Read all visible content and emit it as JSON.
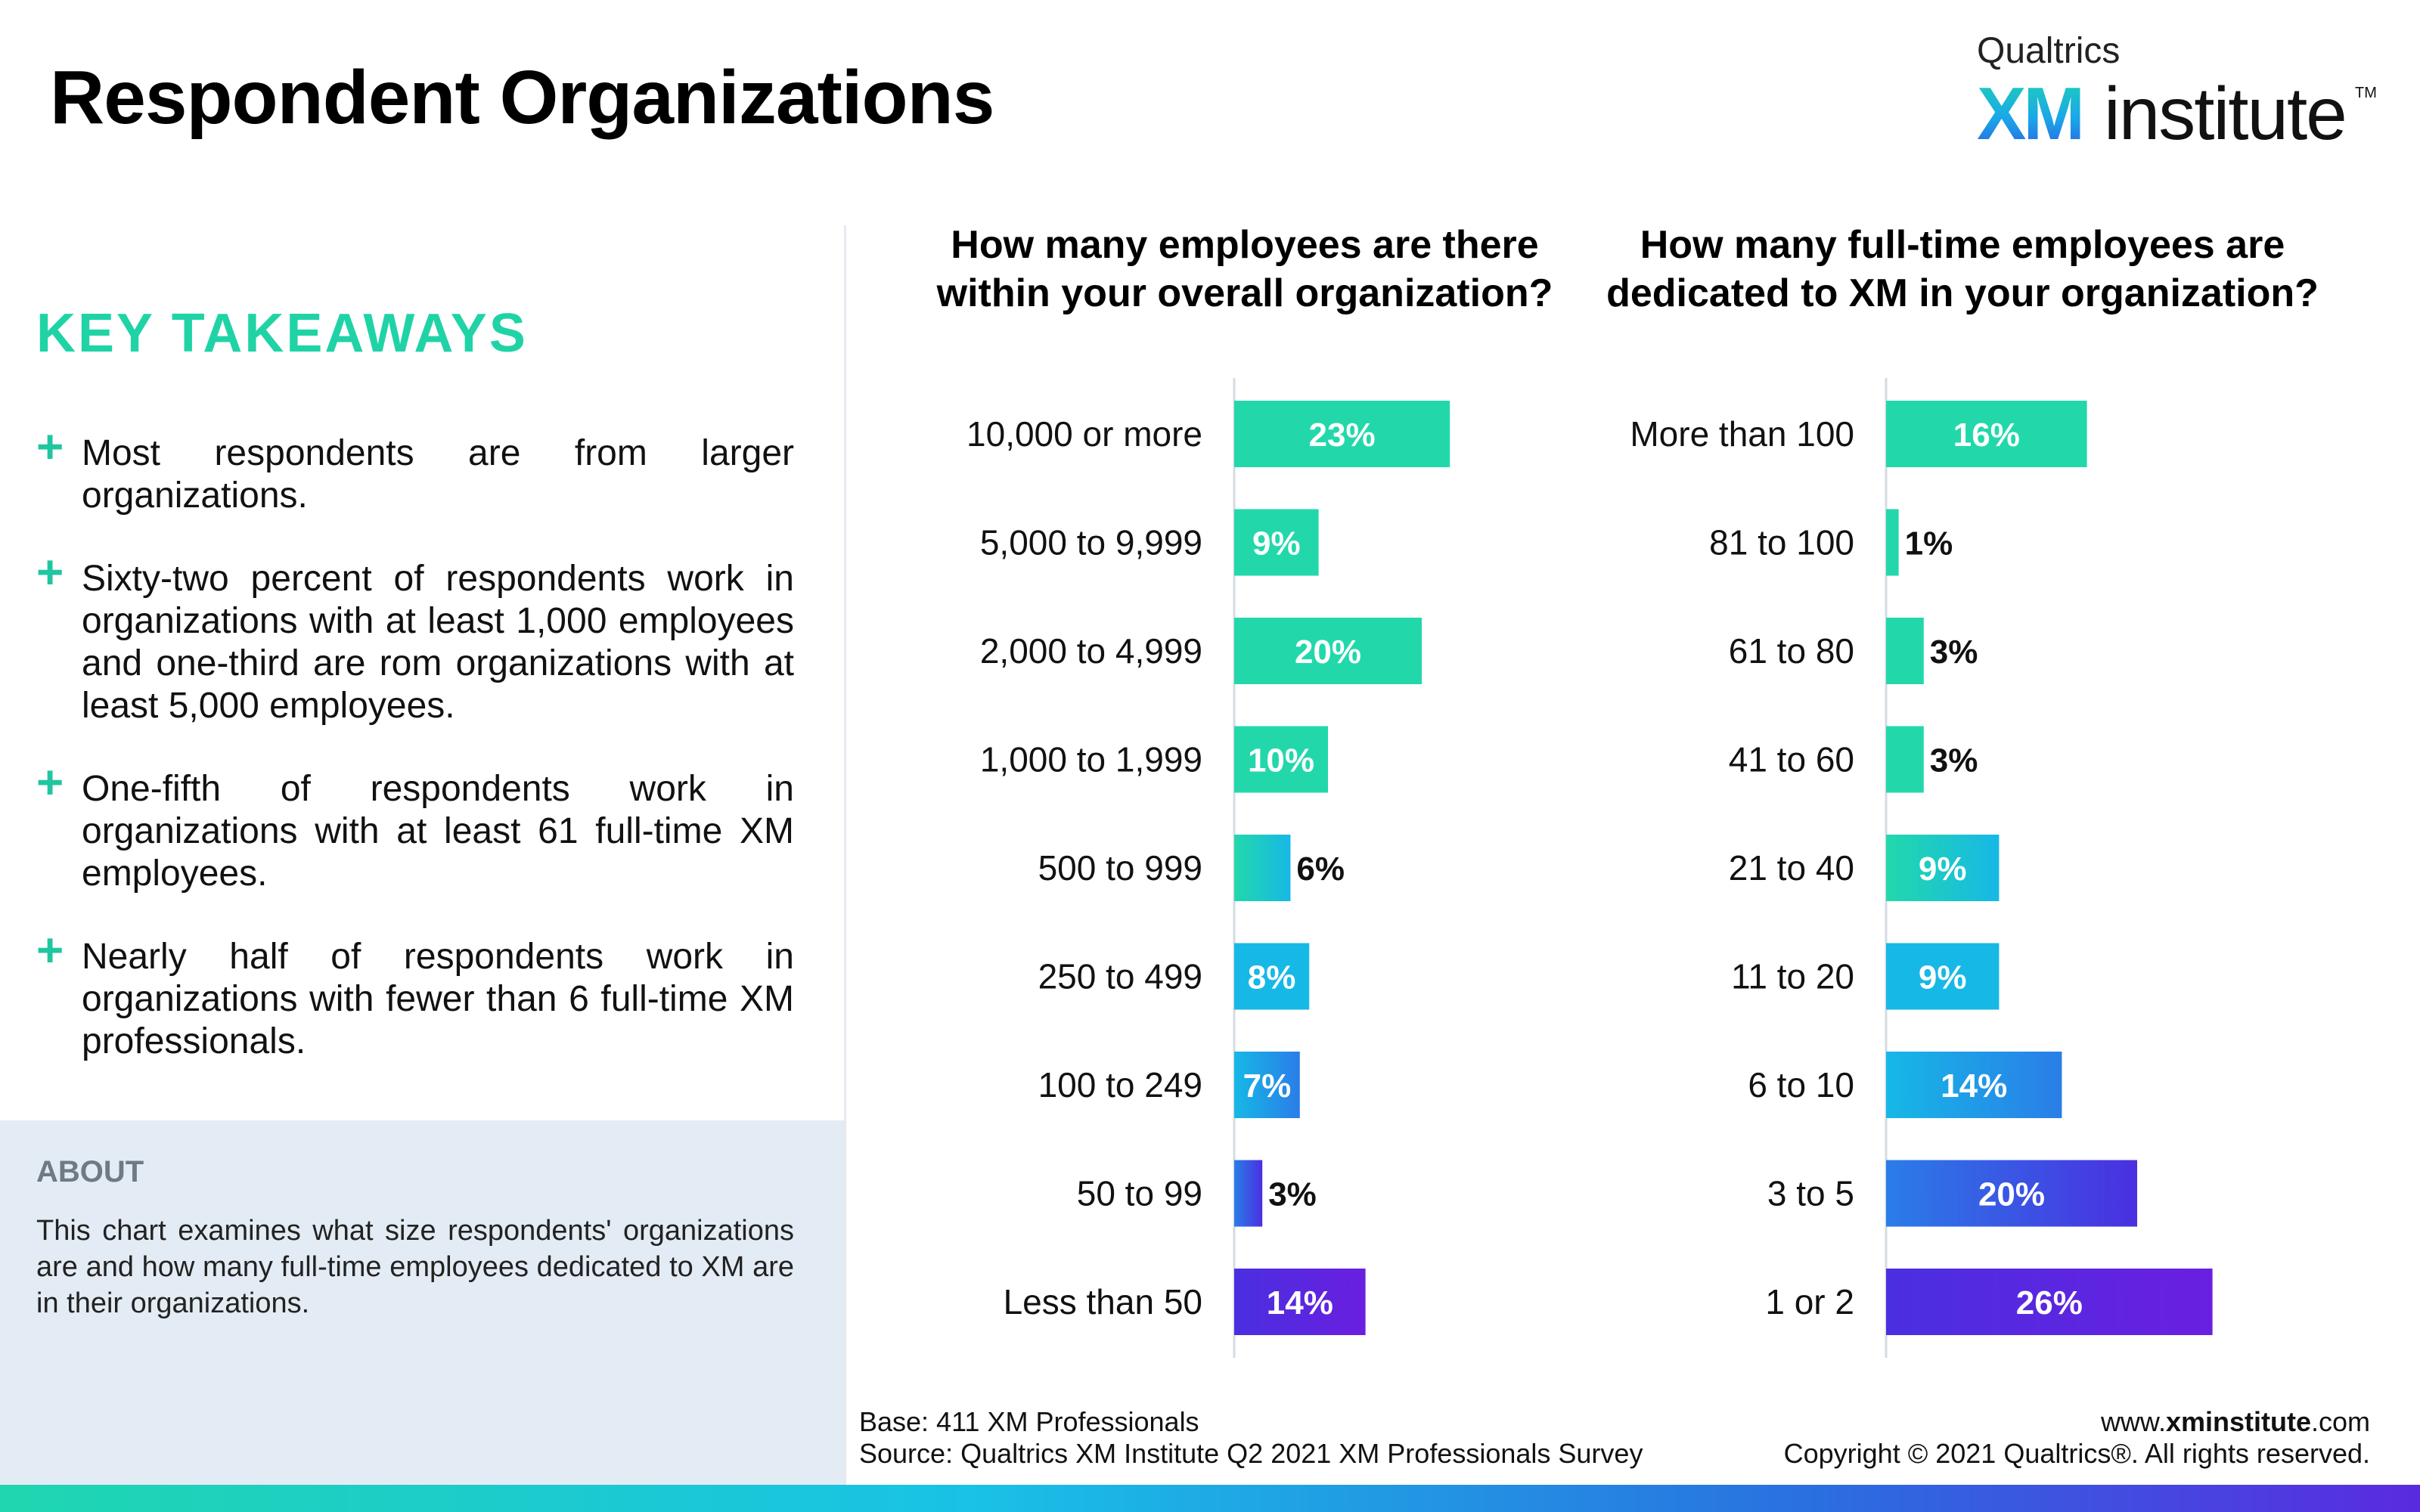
{
  "page": {
    "title": "Respondent Organizations",
    "logo": {
      "top": "Qualtrics",
      "xm": "XM",
      "rest": "institute",
      "tm": "TM"
    }
  },
  "takeaways": {
    "heading": "KEY TAKEAWAYS",
    "items": [
      "Most respondents are from larger organizations.",
      "Sixty-two percent of respondents work in organizations with at least 1,000 employees and one-third are rom organizations with at least 5,000 employees.",
      "One-fifth of respondents work in organizations with at least 61 full-time XM employees.",
      "Nearly half of respondents work in organizations with fewer than 6 full-time XM professionals."
    ],
    "plus_icon": "+"
  },
  "about": {
    "heading": "ABOUT",
    "text": "This chart examines what size respondents' organizations are and how many full-time employees dedicated to XM are in their organizations."
  },
  "footer": {
    "base": "Base: 411 XM Professionals",
    "source": "Source: Qualtrics XM Institute Q2 2021 XM Professionals Survey",
    "url_prefix": "www.",
    "url_bold": "xminstitute",
    "url_suffix": ".com",
    "copyright": "Copyright © 2021 Qualtrics®. All rights reserved."
  },
  "colors": {
    "teal": "#22d8ab",
    "cyan": "#16b8e6",
    "blue": "#2a7de8",
    "indigo": "#4a2fe0",
    "violet": "#6a1fe0",
    "takeaway_green": "#20d3a6"
  },
  "chart_data": [
    {
      "type": "bar",
      "orientation": "horizontal",
      "title": "How many employees are there within your overall organization?",
      "title_lines": [
        "How many employees are there",
        "within your overall organization?"
      ],
      "categories": [
        "10,000 or more",
        "5,000 to 9,999",
        "2,000 to 4,999",
        "1,000 to 1,999",
        "500 to 999",
        "250 to 499",
        "100 to 249",
        "50 to 99",
        "Less than 50"
      ],
      "values": [
        23,
        9,
        20,
        10,
        6,
        8,
        7,
        3,
        14
      ],
      "labels": [
        "23%",
        "9%",
        "20%",
        "10%",
        "6%",
        "8%",
        "7%",
        "3%",
        "14%"
      ],
      "xlim": [
        0,
        35
      ]
    },
    {
      "type": "bar",
      "orientation": "horizontal",
      "title": "How many full-time employees are dedicated to XM in your organization?",
      "title_lines": [
        "How many full-time employees are",
        "dedicated to XM in your organization?"
      ],
      "categories": [
        "More than 100",
        "81 to 100",
        "61 to 80",
        "41 to 60",
        "21 to 40",
        "11 to 20",
        "6 to 10",
        "3 to 5",
        "1 or 2"
      ],
      "values": [
        16,
        1,
        3,
        3,
        9,
        9,
        14,
        20,
        26
      ],
      "labels": [
        "16%",
        "1%",
        "3%",
        "3%",
        "9%",
        "9%",
        "14%",
        "20%",
        "26%"
      ],
      "xlim": [
        0,
        35
      ]
    }
  ]
}
